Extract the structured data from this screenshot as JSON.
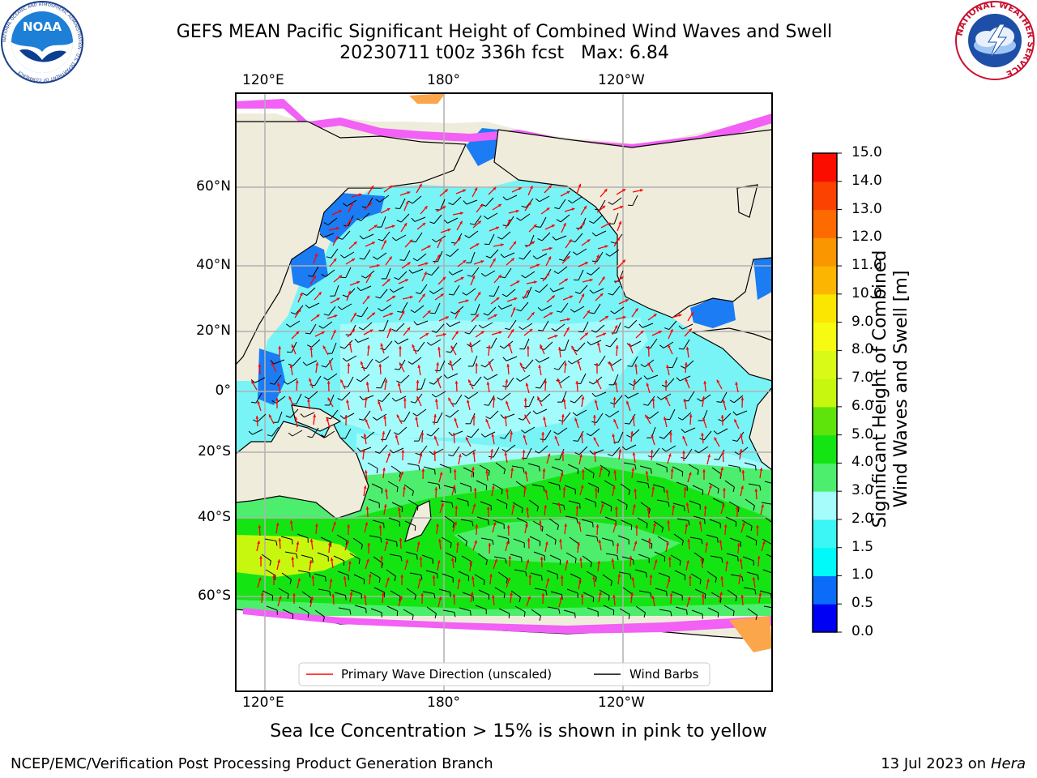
{
  "header": {
    "title_line1": "GEFS MEAN Pacific Significant Height of Combined Wind Waves and Swell",
    "title_line2": "20230711 t00z 336h fcst   Max: 6.84"
  },
  "logos": {
    "left": {
      "name": "noaa-logo",
      "text": "NOAA",
      "ring_text": "NATIONAL OCEANIC AND ATMOSPHERIC ADMINISTRATION · U.S. DEPARTMENT OF COMMERCE"
    },
    "right": {
      "name": "nws-logo",
      "ring_text": "NATIONAL WEATHER SERVICE"
    }
  },
  "map": {
    "lon_labels_top": [
      "120°E",
      "180°",
      "120°W"
    ],
    "lon_labels_bottom": [
      "120°E",
      "180°",
      "120°W"
    ],
    "lat_labels": [
      "60°N",
      "40°N",
      "20°N",
      "0°",
      "20°S",
      "40°S",
      "60°S"
    ],
    "colors": {
      "land": "#efecdc",
      "ocean_mid": "#78f4f6",
      "ocean_pale": "#a4fbfb",
      "ocean_blue": "#1b7cf4",
      "southern_green": "#4dee6d",
      "southern_bright": "#15e413",
      "southern_yellow": "#c8f70f",
      "ice_pink": "#f260f5",
      "ice_orange": "#fba64a",
      "wave_arrow": "#ff0000",
      "wind_barb": "#000000"
    },
    "legend": {
      "items": [
        {
          "label": "Primary Wave Direction (unscaled)",
          "color": "#ff0000"
        },
        {
          "label": "Wind Barbs",
          "color": "#000000"
        }
      ]
    }
  },
  "colorbar": {
    "title_line1": "Significant Height of Combined",
    "title_line2": "Wind Waves and Swell [m]",
    "ticks": [
      "0.0",
      "0.5",
      "1.0",
      "1.5",
      "2.0",
      "3.0",
      "4.0",
      "5.0",
      "6.0",
      "7.0",
      "8.0",
      "9.0",
      "10.0",
      "11.0",
      "12.0",
      "13.0",
      "14.0",
      "15.0"
    ],
    "colors": [
      "#0000f5",
      "#0a6cf9",
      "#00fafa",
      "#3cf5f5",
      "#a6fbfb",
      "#4dee6d",
      "#15e413",
      "#5fe40b",
      "#c8f70f",
      "#d9fa16",
      "#f7fb12",
      "#fae600",
      "#fcb500",
      "#f99600",
      "#fc6a00",
      "#fc4200",
      "#fb0d00"
    ]
  },
  "footer": {
    "note": "Sea Ice Concentration > 15% is shown in pink to yellow",
    "left": "NCEP/EMC/Verification Post Processing Product Generation Branch",
    "right_prefix": "13 Jul 2023 on ",
    "right_machine": "Hera"
  }
}
